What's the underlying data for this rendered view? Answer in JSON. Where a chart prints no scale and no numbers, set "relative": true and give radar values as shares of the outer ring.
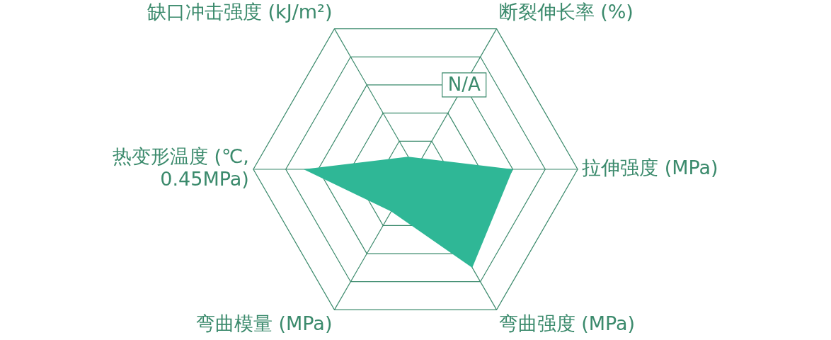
{
  "chart_data": {
    "type": "radar",
    "relative": true,
    "categories": [
      "断裂伸长率 (%)",
      "拉伸强度 (MPa)",
      "弯曲强度 (MPa)",
      "弯曲模量 (MPa)",
      "热变形温度 (℃,\n0.45MPa)",
      "缺口冲击强度 (kJ/m²)"
    ],
    "series": [
      {
        "color": "#2fb796",
        "values": [
          null,
          0.6,
          0.7,
          0.3,
          0.69,
          0.09
        ]
      }
    ],
    "annotations": [
      "N/A"
    ],
    "grid": true,
    "legend": false,
    "marker": "none"
  }
}
